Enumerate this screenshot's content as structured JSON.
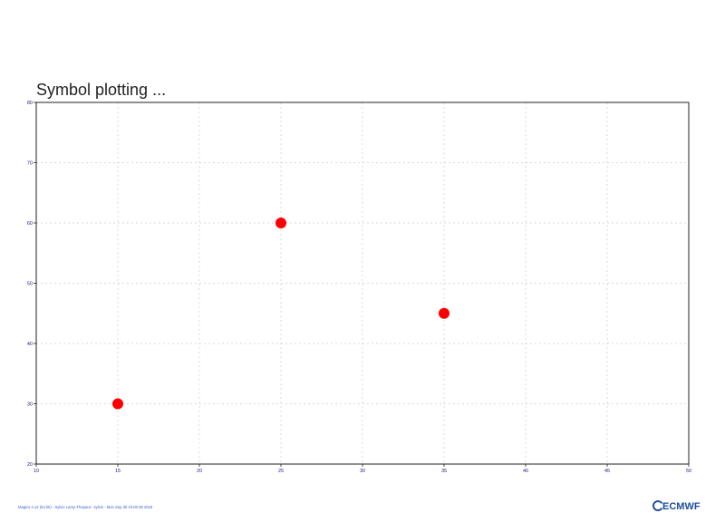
{
  "chart_data": {
    "type": "scatter",
    "title": "Symbol plotting ...",
    "xlabel": "",
    "ylabel": "",
    "xlim": [
      10,
      50
    ],
    "ylim": [
      20,
      80
    ],
    "x_ticks": [
      10,
      15,
      20,
      25,
      30,
      35,
      40,
      45,
      50
    ],
    "y_ticks": [
      20,
      30,
      40,
      50,
      60,
      70,
      80
    ],
    "grid": true,
    "series": [
      {
        "x": [
          15,
          25,
          35
        ],
        "y": [
          30,
          60,
          45
        ],
        "color": "#ff0000",
        "marker": "filled-circle"
      }
    ]
  },
  "footer": {
    "text": "Magics 4.12 (64 bit) - Sylvie Lamy-Thepaut - sylvie - Mon Sep 30 10:00:36 2019"
  },
  "logo": {
    "text": "ECMWF",
    "icon": "ecmwf-logo-icon",
    "color": "#1f4fa0"
  },
  "colors": {
    "frame": "#222222",
    "grid": "#cccccc",
    "tick_label": "#1a1a80",
    "footer": "#3a5fcd"
  }
}
